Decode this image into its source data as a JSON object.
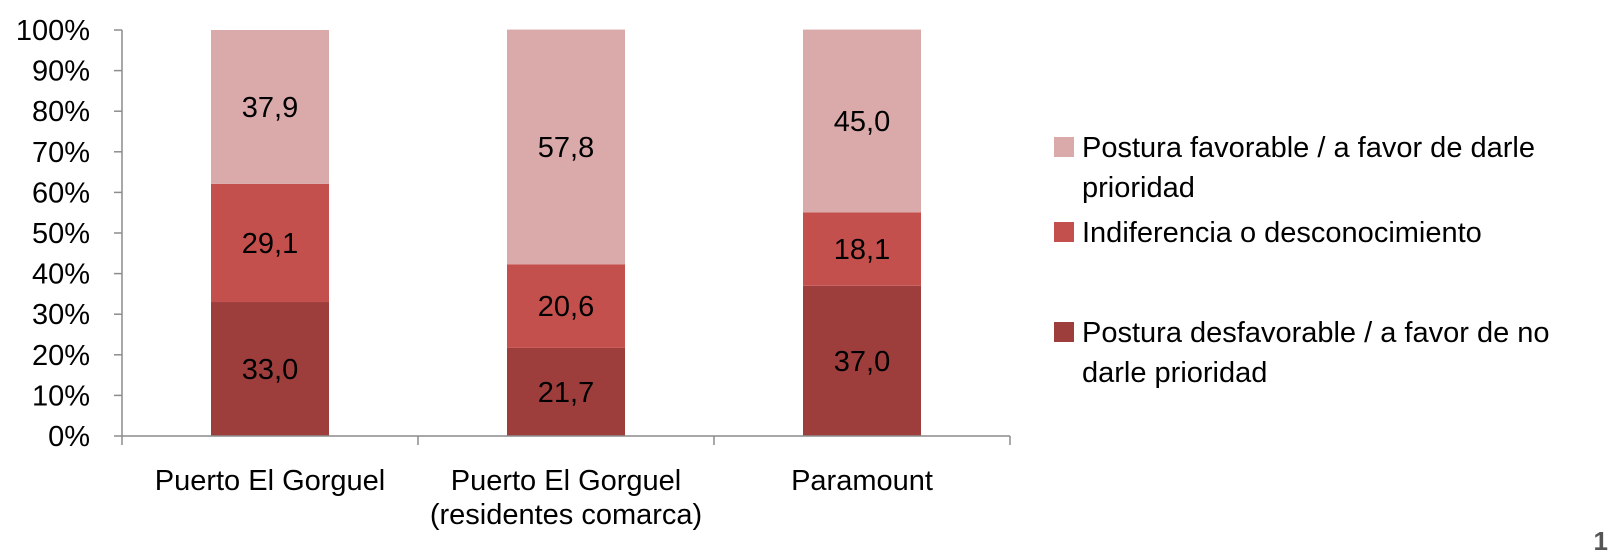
{
  "chart_data": {
    "type": "bar",
    "stacked": true,
    "categories": [
      [
        "Puerto El Gorguel"
      ],
      [
        "Puerto El Gorguel",
        "(residentes comarca)"
      ],
      [
        "Paramount"
      ]
    ],
    "series": [
      {
        "name": "Postura desfavorable / a favor de no darle prioridad",
        "legend_lines": [
          "Postura desfavorable / a favor de no",
          "darle prioridad"
        ],
        "values": [
          33.0,
          21.7,
          37.0
        ],
        "labels": [
          "33,0",
          "21,7",
          "37,0"
        ],
        "color": "#9E3E3C"
      },
      {
        "name": "Indiferencia o desconocimiento",
        "legend_lines": [
          "Indiferencia o desconocimiento"
        ],
        "values": [
          29.1,
          20.6,
          18.1
        ],
        "labels": [
          "29,1",
          "20,6",
          "18,1"
        ],
        "color": "#C4504D"
      },
      {
        "name": "Postura favorable / a favor de darle prioridad",
        "legend_lines": [
          "Postura favorable / a favor de darle",
          "prioridad"
        ],
        "values": [
          37.9,
          57.8,
          45.0
        ],
        "labels": [
          "37,9",
          "57,8",
          "45,0"
        ],
        "color": "#DAAAAA"
      }
    ],
    "y_ticks": [
      "0%",
      "10%",
      "20%",
      "30%",
      "40%",
      "50%",
      "60%",
      "70%",
      "80%",
      "90%",
      "100%"
    ],
    "ylim": [
      0,
      100
    ],
    "grid": false,
    "legend_position": "right",
    "title": "",
    "xlabel": "",
    "ylabel": ""
  },
  "page": {
    "corner_text": "1"
  }
}
